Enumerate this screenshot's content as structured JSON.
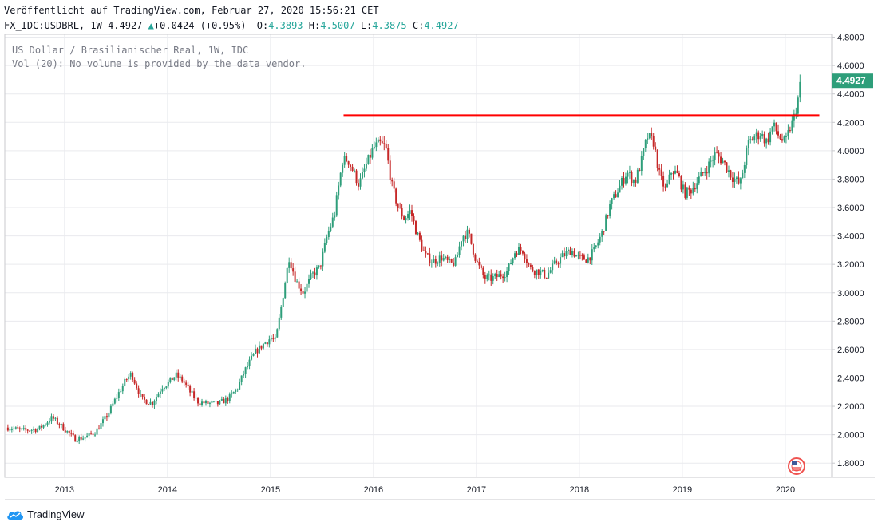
{
  "header": {
    "published": "Veröffentlicht auf TradingView.com, Februar 27, 2020 15:56:21 CET",
    "symbol": "FX_IDC:USDBRL, 1W",
    "last": "4.4927",
    "change": "+0.0424 (+0.95%)",
    "ohlc": {
      "o_label": "O:",
      "o": "4.3893",
      "h_label": "H:",
      "h": "4.5007",
      "l_label": "L:",
      "l": "4.3875",
      "c_label": "C:",
      "c": "4.4927"
    }
  },
  "overlay": {
    "title": "US Dollar / Brasilianischer Real, 1W, IDC",
    "volume_note": "Vol (20): No volume is provided by the data vendor."
  },
  "branding": {
    "logo_text": "TradingView"
  },
  "colors": {
    "up": "#26a69a",
    "down": "#ef5350",
    "candle_up": "#2e9e7a",
    "candle_down": "#c62828",
    "resistance": "#ff0000",
    "grid": "#e9eaee"
  },
  "chart_data": {
    "type": "candlestick",
    "instrument": "USD/BRL",
    "interval": "1W",
    "x": {
      "ticks": [
        "2013",
        "2014",
        "2015",
        "2016",
        "2017",
        "2018",
        "2019",
        "2020"
      ],
      "range": [
        2012.42,
        2020.45
      ]
    },
    "y": {
      "ticks": [
        "1.8000",
        "2.0000",
        "2.2000",
        "2.4000",
        "2.6000",
        "2.8000",
        "3.0000",
        "3.2000",
        "3.4000",
        "3.6000",
        "3.8000",
        "4.0000",
        "4.2000",
        "4.4000",
        "4.6000",
        "4.8000"
      ],
      "range": [
        1.7,
        4.82
      ]
    },
    "last_price_label": "4.4927",
    "close_series": [
      [
        2012.45,
        2.05
      ],
      [
        2012.6,
        2.03
      ],
      [
        2012.75,
        2.04
      ],
      [
        2012.88,
        2.12
      ],
      [
        2013.0,
        2.04
      ],
      [
        2013.1,
        1.97
      ],
      [
        2013.2,
        1.98
      ],
      [
        2013.3,
        2.02
      ],
      [
        2013.42,
        2.14
      ],
      [
        2013.5,
        2.26
      ],
      [
        2013.6,
        2.39
      ],
      [
        2013.65,
        2.43
      ],
      [
        2013.75,
        2.25
      ],
      [
        2013.85,
        2.22
      ],
      [
        2013.95,
        2.34
      ],
      [
        2014.0,
        2.36
      ],
      [
        2014.08,
        2.42
      ],
      [
        2014.15,
        2.38
      ],
      [
        2014.22,
        2.3
      ],
      [
        2014.3,
        2.23
      ],
      [
        2014.4,
        2.22
      ],
      [
        2014.5,
        2.22
      ],
      [
        2014.6,
        2.26
      ],
      [
        2014.68,
        2.33
      ],
      [
        2014.75,
        2.45
      ],
      [
        2014.85,
        2.58
      ],
      [
        2014.95,
        2.65
      ],
      [
        2015.0,
        2.68
      ],
      [
        2015.05,
        2.66
      ],
      [
        2015.1,
        2.88
      ],
      [
        2015.18,
        3.25
      ],
      [
        2015.25,
        3.08
      ],
      [
        2015.32,
        3.0
      ],
      [
        2015.4,
        3.12
      ],
      [
        2015.48,
        3.18
      ],
      [
        2015.55,
        3.4
      ],
      [
        2015.62,
        3.55
      ],
      [
        2015.7,
        3.93
      ],
      [
        2015.75,
        3.94
      ],
      [
        2015.8,
        3.86
      ],
      [
        2015.86,
        3.76
      ],
      [
        2015.92,
        3.88
      ],
      [
        2016.0,
        4.02
      ],
      [
        2016.06,
        4.05
      ],
      [
        2016.12,
        4.02
      ],
      [
        2016.18,
        3.75
      ],
      [
        2016.24,
        3.6
      ],
      [
        2016.3,
        3.52
      ],
      [
        2016.36,
        3.58
      ],
      [
        2016.42,
        3.42
      ],
      [
        2016.5,
        3.26
      ],
      [
        2016.58,
        3.22
      ],
      [
        2016.66,
        3.25
      ],
      [
        2016.75,
        3.2
      ],
      [
        2016.8,
        3.22
      ],
      [
        2016.86,
        3.4
      ],
      [
        2016.92,
        3.42
      ],
      [
        2017.0,
        3.22
      ],
      [
        2017.08,
        3.1
      ],
      [
        2017.15,
        3.1
      ],
      [
        2017.22,
        3.12
      ],
      [
        2017.3,
        3.15
      ],
      [
        2017.38,
        3.3
      ],
      [
        2017.45,
        3.3
      ],
      [
        2017.52,
        3.17
      ],
      [
        2017.6,
        3.15
      ],
      [
        2017.68,
        3.12
      ],
      [
        2017.76,
        3.2
      ],
      [
        2017.84,
        3.26
      ],
      [
        2017.92,
        3.3
      ],
      [
        2018.0,
        3.24
      ],
      [
        2018.08,
        3.24
      ],
      [
        2018.14,
        3.29
      ],
      [
        2018.22,
        3.42
      ],
      [
        2018.3,
        3.62
      ],
      [
        2018.38,
        3.73
      ],
      [
        2018.46,
        3.85
      ],
      [
        2018.54,
        3.78
      ],
      [
        2018.6,
        3.92
      ],
      [
        2018.66,
        4.1
      ],
      [
        2018.72,
        4.06
      ],
      [
        2018.78,
        3.82
      ],
      [
        2018.84,
        3.72
      ],
      [
        2018.9,
        3.87
      ],
      [
        2018.96,
        3.82
      ],
      [
        2019.02,
        3.7
      ],
      [
        2019.08,
        3.72
      ],
      [
        2019.16,
        3.8
      ],
      [
        2019.24,
        3.88
      ],
      [
        2019.32,
        3.98
      ],
      [
        2019.4,
        3.92
      ],
      [
        2019.48,
        3.82
      ],
      [
        2019.56,
        3.76
      ],
      [
        2019.64,
        4.05
      ],
      [
        2019.7,
        4.1
      ],
      [
        2019.76,
        4.12
      ],
      [
        2019.82,
        4.06
      ],
      [
        2019.88,
        4.18
      ],
      [
        2019.94,
        4.1
      ],
      [
        2020.0,
        4.05
      ],
      [
        2020.04,
        4.15
      ],
      [
        2020.08,
        4.22
      ],
      [
        2020.12,
        4.35
      ],
      [
        2020.15,
        4.4927
      ]
    ],
    "annotations": [
      {
        "type": "horizontal_line",
        "label": "resistance",
        "y": 4.25,
        "x_from": 2015.71,
        "x_to": 2020.33,
        "color": "#ff0000"
      }
    ]
  }
}
